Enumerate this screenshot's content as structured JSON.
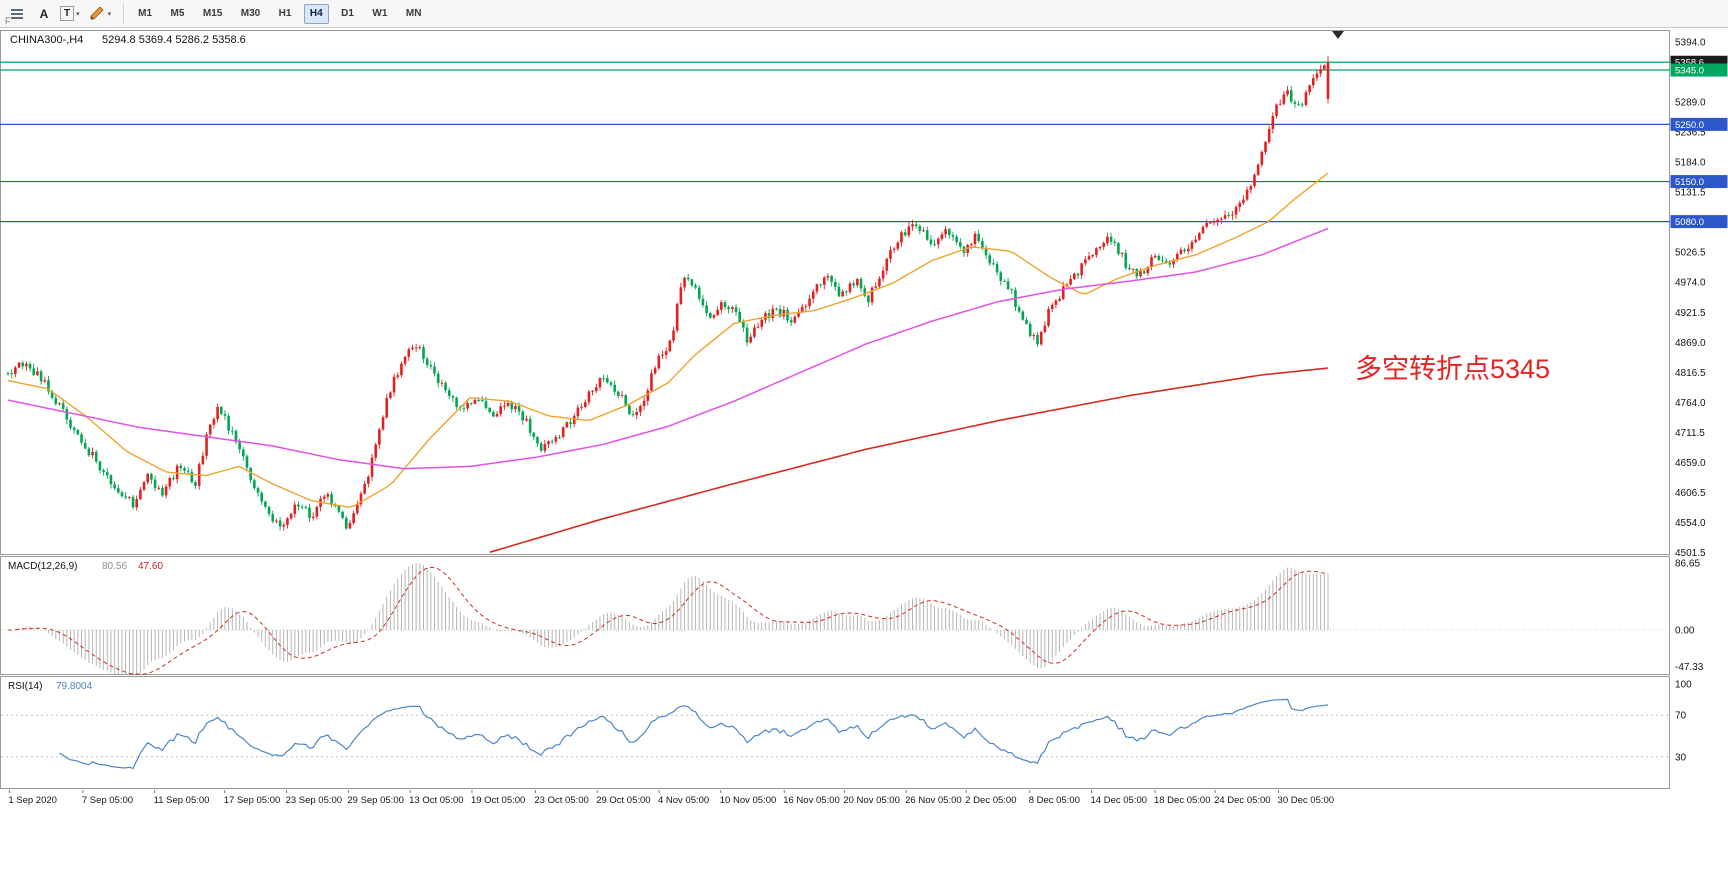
{
  "toolbar": {
    "grip_label": "F",
    "tool_a": "A",
    "tool_t": "T",
    "timeframes": [
      "M1",
      "M5",
      "M15",
      "M30",
      "H1",
      "H4",
      "D1",
      "W1",
      "MN"
    ],
    "selected_timeframe": "H4"
  },
  "main_chart": {
    "symbol_period": "CHINA300-,H4",
    "ohlc_text": "5294.8 5369.4 5286.2 5358.6",
    "annotation": "多空转折点5345",
    "annotation_color": "#e62222"
  },
  "price_axis": {
    "max": 5394.0,
    "step": 52.5,
    "count": 18,
    "decimals": 1
  },
  "hlines": [
    {
      "price": 5358.6,
      "label": "5358.6",
      "line": "#00a862",
      "badge": "#1c1c1c"
    },
    {
      "price": 5345.0,
      "label": "5345.0",
      "line": "#00a862",
      "badge": "#00a862"
    },
    {
      "price": 5250.0,
      "label": "5250.0",
      "line": "#2b57c8",
      "badge": "#2b57c8"
    },
    {
      "price": 5150.0,
      "label": "5150.0",
      "line": "#2b57c8",
      "badge": "#2b57c8"
    },
    {
      "price": 5080.0,
      "label": "5080.0",
      "line": "#2b57c8",
      "badge": "#2b57c8"
    }
  ],
  "chart_data": {
    "type": "candlestick",
    "symbol": "CHINA300-",
    "timeframe": "H4",
    "bars": 360,
    "visible_range": {
      "price_min": 4501.5,
      "price_max": 5394.0
    },
    "last_candle": {
      "open": 5294.8,
      "high": 5369.4,
      "low": 5286.2,
      "close": 5358.6
    },
    "colors": {
      "up": "#e32020",
      "down": "#00a651",
      "ma_fast": "#efa32f",
      "ma_mid": "#e352e3",
      "ma_slow": "#d22c22"
    },
    "price_path": [
      [
        0,
        4815
      ],
      [
        0.012,
        4830
      ],
      [
        0.025,
        4806
      ],
      [
        0.04,
        4756
      ],
      [
        0.052,
        4706
      ],
      [
        0.065,
        4668
      ],
      [
        0.08,
        4618
      ],
      [
        0.095,
        4588
      ],
      [
        0.105,
        4636
      ],
      [
        0.118,
        4606
      ],
      [
        0.13,
        4656
      ],
      [
        0.142,
        4618
      ],
      [
        0.152,
        4724
      ],
      [
        0.16,
        4756
      ],
      [
        0.172,
        4696
      ],
      [
        0.185,
        4626
      ],
      [
        0.198,
        4562
      ],
      [
        0.208,
        4540
      ],
      [
        0.218,
        4590
      ],
      [
        0.23,
        4566
      ],
      [
        0.24,
        4606
      ],
      [
        0.25,
        4568
      ],
      [
        0.257,
        4546
      ],
      [
        0.264,
        4582
      ],
      [
        0.272,
        4625
      ],
      [
        0.28,
        4700
      ],
      [
        0.29,
        4792
      ],
      [
        0.3,
        4842
      ],
      [
        0.31,
        4862
      ],
      [
        0.32,
        4820
      ],
      [
        0.332,
        4782
      ],
      [
        0.344,
        4752
      ],
      [
        0.356,
        4772
      ],
      [
        0.368,
        4746
      ],
      [
        0.38,
        4762
      ],
      [
        0.392,
        4732
      ],
      [
        0.404,
        4684
      ],
      [
        0.416,
        4702
      ],
      [
        0.428,
        4736
      ],
      [
        0.44,
        4776
      ],
      [
        0.452,
        4812
      ],
      [
        0.462,
        4782
      ],
      [
        0.472,
        4742
      ],
      [
        0.482,
        4772
      ],
      [
        0.492,
        4838
      ],
      [
        0.502,
        4872
      ],
      [
        0.512,
        4986
      ],
      [
        0.522,
        4958
      ],
      [
        0.532,
        4906
      ],
      [
        0.542,
        4940
      ],
      [
        0.552,
        4926
      ],
      [
        0.56,
        4872
      ],
      [
        0.57,
        4906
      ],
      [
        0.582,
        4926
      ],
      [
        0.594,
        4910
      ],
      [
        0.606,
        4942
      ],
      [
        0.618,
        4986
      ],
      [
        0.63,
        4952
      ],
      [
        0.642,
        4976
      ],
      [
        0.652,
        4946
      ],
      [
        0.664,
        5006
      ],
      [
        0.676,
        5058
      ],
      [
        0.688,
        5076
      ],
      [
        0.7,
        5042
      ],
      [
        0.712,
        5066
      ],
      [
        0.724,
        5026
      ],
      [
        0.734,
        5056
      ],
      [
        0.746,
        5002
      ],
      [
        0.758,
        4966
      ],
      [
        0.77,
        4902
      ],
      [
        0.78,
        4868
      ],
      [
        0.79,
        4930
      ],
      [
        0.8,
        4964
      ],
      [
        0.812,
        4996
      ],
      [
        0.824,
        5034
      ],
      [
        0.836,
        5050
      ],
      [
        0.848,
        5002
      ],
      [
        0.858,
        4986
      ],
      [
        0.868,
        5016
      ],
      [
        0.878,
        5000
      ],
      [
        0.888,
        5030
      ],
      [
        0.898,
        5046
      ],
      [
        0.906,
        5070
      ],
      [
        0.916,
        5082
      ],
      [
        0.926,
        5092
      ],
      [
        0.936,
        5118
      ],
      [
        0.946,
        5172
      ],
      [
        0.955,
        5238
      ],
      [
        0.963,
        5290
      ],
      [
        0.97,
        5306
      ],
      [
        0.977,
        5274
      ],
      [
        0.984,
        5308
      ],
      [
        0.991,
        5336
      ],
      [
        1,
        5355
      ]
    ],
    "ma_fast_path": [
      [
        0,
        4802
      ],
      [
        0.03,
        4788
      ],
      [
        0.06,
        4738
      ],
      [
        0.09,
        4678
      ],
      [
        0.12,
        4642
      ],
      [
        0.15,
        4636
      ],
      [
        0.175,
        4652
      ],
      [
        0.2,
        4622
      ],
      [
        0.23,
        4592
      ],
      [
        0.26,
        4580
      ],
      [
        0.29,
        4620
      ],
      [
        0.32,
        4702
      ],
      [
        0.35,
        4772
      ],
      [
        0.38,
        4766
      ],
      [
        0.41,
        4740
      ],
      [
        0.44,
        4732
      ],
      [
        0.47,
        4760
      ],
      [
        0.5,
        4798
      ],
      [
        0.52,
        4846
      ],
      [
        0.55,
        4902
      ],
      [
        0.58,
        4916
      ],
      [
        0.61,
        4924
      ],
      [
        0.64,
        4946
      ],
      [
        0.67,
        4972
      ],
      [
        0.7,
        5012
      ],
      [
        0.73,
        5036
      ],
      [
        0.76,
        5028
      ],
      [
        0.79,
        4982
      ],
      [
        0.815,
        4952
      ],
      [
        0.84,
        4980
      ],
      [
        0.87,
        5004
      ],
      [
        0.9,
        5022
      ],
      [
        0.93,
        5052
      ],
      [
        0.955,
        5080
      ],
      [
        0.975,
        5120
      ],
      [
        1,
        5165
      ]
    ],
    "ma_mid_path": [
      [
        0,
        4768
      ],
      [
        0.05,
        4744
      ],
      [
        0.1,
        4720
      ],
      [
        0.15,
        4704
      ],
      [
        0.2,
        4688
      ],
      [
        0.25,
        4664
      ],
      [
        0.3,
        4648
      ],
      [
        0.35,
        4652
      ],
      [
        0.4,
        4668
      ],
      [
        0.45,
        4690
      ],
      [
        0.5,
        4722
      ],
      [
        0.55,
        4766
      ],
      [
        0.6,
        4816
      ],
      [
        0.65,
        4866
      ],
      [
        0.7,
        4906
      ],
      [
        0.75,
        4940
      ],
      [
        0.8,
        4962
      ],
      [
        0.85,
        4976
      ],
      [
        0.9,
        4992
      ],
      [
        0.95,
        5022
      ],
      [
        1,
        5068
      ]
    ],
    "ma_slow_path": [
      [
        0.365,
        4502
      ],
      [
        0.45,
        4560
      ],
      [
        0.55,
        4622
      ],
      [
        0.65,
        4682
      ],
      [
        0.75,
        4732
      ],
      [
        0.85,
        4776
      ],
      [
        0.95,
        4812
      ],
      [
        1,
        4824
      ]
    ]
  },
  "macd": {
    "label": "MACD(12,26,9)",
    "main_value": "80.56",
    "signal_value": "47.60",
    "main_value_color": "#909090",
    "signal_value_color": "#cc2222",
    "axis_max": "86.65",
    "axis_zero": "0.00",
    "axis_min": "-47.33",
    "axis_max_num": 86.65,
    "axis_min_num": -47.33,
    "histogram_color": "#b4b4b4",
    "signal_color": "#d22c22"
  },
  "rsi": {
    "label": "RSI(14)",
    "value": "79.8004",
    "value_num": 79.8004,
    "line_color": "#4a86c8",
    "axis_labels": [
      "100",
      "70",
      "30"
    ],
    "levels": [
      70,
      30
    ]
  },
  "time_axis": {
    "labels": [
      {
        "text": "1 Sep 2020",
        "pos": 0.005
      },
      {
        "text": "7 Sep 05:00",
        "pos": 0.049
      },
      {
        "text": "11 Sep 05:00",
        "pos": 0.092
      },
      {
        "text": "17 Sep 05:00",
        "pos": 0.134
      },
      {
        "text": "23 Sep 05:00",
        "pos": 0.171
      },
      {
        "text": "29 Sep 05:00",
        "pos": 0.208
      },
      {
        "text": "13 Oct 05:00",
        "pos": 0.245
      },
      {
        "text": "19 Oct 05:00",
        "pos": 0.282
      },
      {
        "text": "23 Oct 05:00",
        "pos": 0.32
      },
      {
        "text": "29 Oct 05:00",
        "pos": 0.357
      },
      {
        "text": "4 Nov 05:00",
        "pos": 0.394
      },
      {
        "text": "10 Nov 05:00",
        "pos": 0.431
      },
      {
        "text": "16 Nov 05:00",
        "pos": 0.469
      },
      {
        "text": "20 Nov 05:00",
        "pos": 0.505
      },
      {
        "text": "26 Nov 05:00",
        "pos": 0.542
      },
      {
        "text": "2 Dec 05:00",
        "pos": 0.578
      },
      {
        "text": "8 Dec 05:00",
        "pos": 0.616
      },
      {
        "text": "14 Dec 05:00",
        "pos": 0.653
      },
      {
        "text": "18 Dec 05:00",
        "pos": 0.691
      },
      {
        "text": "24 Dec 05:00",
        "pos": 0.727
      },
      {
        "text": "30 Dec 05:00",
        "pos": 0.765
      }
    ]
  }
}
